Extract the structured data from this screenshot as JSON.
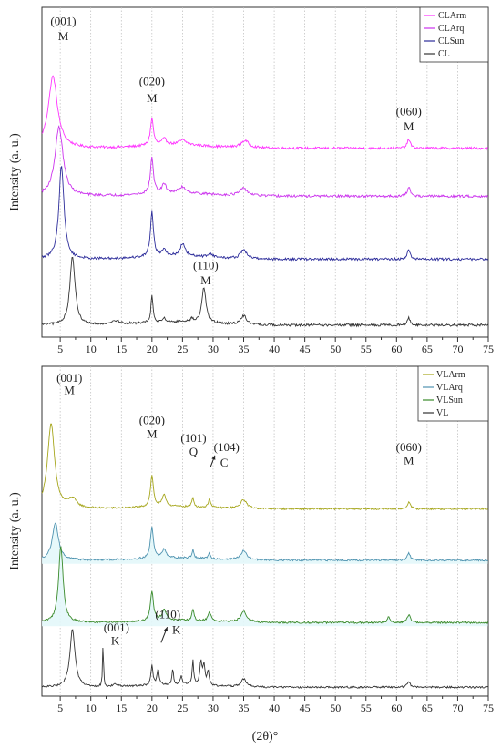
{
  "figure": {
    "shared_xlabel": "(2θ)°",
    "colors": {
      "CLArm": "#ff33ff",
      "CLArq": "#cc33ee",
      "CLSun": "#2c2c9a",
      "CL": "#333333",
      "VLArm": "#a6a61c",
      "VLArq": "#4f93b0",
      "VLSun": "#3a8a2a",
      "VL": "#333333",
      "fill_cyan": "#e3f7fa"
    }
  },
  "chart_data": [
    {
      "type": "line",
      "panel": "top",
      "title": "",
      "xlabel": "(2θ)°",
      "ylabel": "Intensity (a. u.)",
      "xlim": [
        2,
        75
      ],
      "x_ticks": [
        "5",
        "10",
        "15",
        "20",
        "25",
        "30",
        "35",
        "40",
        "45",
        "50",
        "55",
        "60",
        "65",
        "70",
        "75"
      ],
      "y_ticks_shown": false,
      "grid": "vertical dotted",
      "legend_placement": "top-right",
      "series": [
        {
          "name": "CLArm",
          "color": "#ff33ff",
          "baseline": 2.95,
          "noise": 0.02,
          "peaks": [
            [
              3.8,
              1.2,
              0.9
            ],
            [
              20.0,
              0.45,
              0.3
            ],
            [
              22.0,
              0.1,
              0.5
            ],
            [
              25.0,
              0.08,
              0.8
            ],
            [
              35.2,
              0.12,
              0.8
            ],
            [
              62.0,
              0.15,
              0.3
            ]
          ]
        },
        {
          "name": "CLArq",
          "color": "#cc33ee",
          "baseline": 2.15,
          "noise": 0.02,
          "peaks": [
            [
              4.8,
              1.15,
              0.8
            ],
            [
              20.0,
              0.6,
              0.3
            ],
            [
              22.0,
              0.15,
              0.4
            ],
            [
              25.0,
              0.1,
              0.7
            ],
            [
              35.0,
              0.12,
              0.8
            ],
            [
              62.0,
              0.15,
              0.3
            ]
          ]
        },
        {
          "name": "CLSun",
          "color": "#2c2c9a",
          "baseline": 1.1,
          "noise": 0.02,
          "peaks": [
            [
              5.2,
              1.55,
              0.5
            ],
            [
              20.0,
              0.75,
              0.3
            ],
            [
              22.0,
              0.12,
              0.4
            ],
            [
              25.0,
              0.2,
              0.5
            ],
            [
              29.5,
              0.06,
              0.5
            ],
            [
              35.0,
              0.15,
              0.6
            ],
            [
              62.0,
              0.15,
              0.3
            ]
          ]
        },
        {
          "name": "CL",
          "color": "#333333",
          "baseline": 0.0,
          "noise": 0.02,
          "peaks": [
            [
              7.0,
              1.15,
              0.5
            ],
            [
              14.0,
              0.06,
              1.0
            ],
            [
              20.0,
              0.45,
              0.2
            ],
            [
              22.0,
              0.08,
              0.3
            ],
            [
              26.5,
              0.05,
              0.3
            ],
            [
              28.5,
              0.6,
              0.4
            ],
            [
              35.0,
              0.15,
              0.6
            ],
            [
              62.0,
              0.12,
              0.3
            ]
          ]
        }
      ],
      "annotations": [
        {
          "text": "(001)",
          "x": 5.5,
          "y": 5.0
        },
        {
          "text": "M",
          "x": 5.5,
          "y": 4.75
        },
        {
          "text": "(020)",
          "x": 20.0,
          "y": 4.0
        },
        {
          "text": "M",
          "x": 20.0,
          "y": 3.72
        },
        {
          "text": "(060)",
          "x": 62.0,
          "y": 3.5
        },
        {
          "text": "M",
          "x": 62.0,
          "y": 3.25
        },
        {
          "text": "(110)",
          "x": 28.8,
          "y": 0.93
        },
        {
          "text": "M",
          "x": 28.8,
          "y": 0.68
        }
      ],
      "ylim": [
        -0.2,
        5.3
      ]
    },
    {
      "type": "line",
      "panel": "bottom",
      "title": "",
      "xlabel": "(2θ)°",
      "ylabel": "Intensity (a. u.)",
      "xlim": [
        2,
        75
      ],
      "x_ticks": [
        "5",
        "10",
        "15",
        "20",
        "25",
        "30",
        "35",
        "40",
        "45",
        "50",
        "55",
        "60",
        "65",
        "70",
        "75"
      ],
      "y_ticks_shown": false,
      "grid": "vertical dotted",
      "legend_placement": "top-right",
      "series": [
        {
          "name": "VLArm",
          "color": "#a6a61c",
          "baseline": 4.0,
          "noise": 0.02,
          "peaks": [
            [
              3.5,
              1.9,
              0.7
            ],
            [
              7.0,
              0.2,
              0.8
            ],
            [
              20.0,
              0.7,
              0.3
            ],
            [
              22.0,
              0.25,
              0.4
            ],
            [
              26.7,
              0.2,
              0.2
            ],
            [
              29.4,
              0.2,
              0.2
            ],
            [
              35.0,
              0.2,
              0.6
            ],
            [
              62.0,
              0.15,
              0.3
            ]
          ]
        },
        {
          "name": "VLArq",
          "color": "#4f93b0",
          "baseline": 2.85,
          "noise": 0.02,
          "fill": true,
          "peaks": [
            [
              4.2,
              0.85,
              0.6
            ],
            [
              20.0,
              0.7,
              0.3
            ],
            [
              22.0,
              0.2,
              0.4
            ],
            [
              26.7,
              0.18,
              0.2
            ],
            [
              29.4,
              0.12,
              0.2
            ],
            [
              35.0,
              0.2,
              0.6
            ],
            [
              62.0,
              0.15,
              0.3
            ]
          ]
        },
        {
          "name": "VLSun",
          "color": "#3a8a2a",
          "baseline": 1.45,
          "noise": 0.02,
          "fill": true,
          "peaks": [
            [
              5.1,
              1.7,
              0.45
            ],
            [
              20.0,
              0.65,
              0.3
            ],
            [
              22.0,
              0.25,
              0.4
            ],
            [
              26.7,
              0.25,
              0.2
            ],
            [
              29.4,
              0.2,
              0.3
            ],
            [
              35.0,
              0.25,
              0.6
            ],
            [
              58.7,
              0.15,
              0.2
            ],
            [
              62.0,
              0.18,
              0.3
            ]
          ]
        },
        {
          "name": "VL",
          "color": "#333333",
          "baseline": 0.0,
          "noise": 0.02,
          "peaks": [
            [
              7.0,
              1.3,
              0.5
            ],
            [
              12.0,
              1.1,
              0.08
            ],
            [
              14.0,
              0.05,
              0.5
            ],
            [
              20.0,
              0.45,
              0.2
            ],
            [
              21.0,
              0.35,
              0.2
            ],
            [
              23.4,
              0.35,
              0.15
            ],
            [
              24.8,
              0.2,
              0.2
            ],
            [
              26.7,
              0.55,
              0.15
            ],
            [
              28.0,
              0.5,
              0.2
            ],
            [
              28.5,
              0.45,
              0.2
            ],
            [
              29.2,
              0.3,
              0.2
            ],
            [
              35.0,
              0.18,
              0.5
            ],
            [
              62.0,
              0.12,
              0.3
            ]
          ]
        }
      ],
      "annotations": [
        {
          "text": "(001)",
          "x": 6.5,
          "y": 6.85
        },
        {
          "text": "M",
          "x": 6.5,
          "y": 6.58
        },
        {
          "text": "(020)",
          "x": 20.0,
          "y": 5.9
        },
        {
          "text": "M",
          "x": 20.0,
          "y": 5.6
        },
        {
          "text": "(101)",
          "x": 26.8,
          "y": 5.5
        },
        {
          "text": "Q",
          "x": 26.8,
          "y": 5.2
        },
        {
          "text": "(104)",
          "x": 32.2,
          "y": 5.3
        },
        {
          "text": "C",
          "x": 31.8,
          "y": 4.95
        },
        {
          "text": "(060)",
          "x": 62.0,
          "y": 5.3
        },
        {
          "text": "M",
          "x": 62.0,
          "y": 5.0
        },
        {
          "text": "(001)",
          "x": 14.2,
          "y": 1.25
        },
        {
          "text": "K",
          "x": 14.0,
          "y": 0.95
        },
        {
          "text": "(110)",
          "x": 22.6,
          "y": 1.55
        },
        {
          "text": "K",
          "x": 24.0,
          "y": 1.2
        }
      ],
      "arrows": [
        {
          "from": [
            29.6,
            4.95
          ],
          "to": [
            30.3,
            5.2
          ]
        },
        {
          "from": [
            21.5,
            1.0
          ],
          "to": [
            22.5,
            1.35
          ]
        }
      ],
      "ylim": [
        -0.2,
        7.2
      ]
    }
  ]
}
